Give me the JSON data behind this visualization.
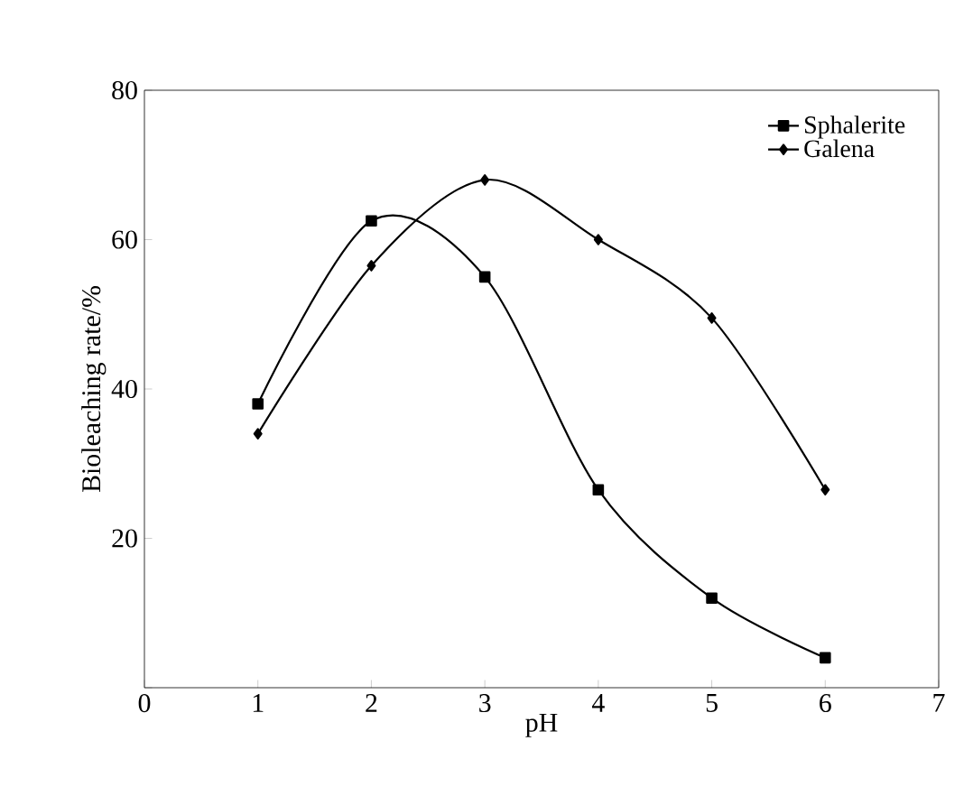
{
  "chart_data": {
    "type": "line",
    "xlabel": "pH",
    "ylabel": "Bioleaching rate/%",
    "x": [
      1,
      2,
      3,
      4,
      5,
      6
    ],
    "series": [
      {
        "name": "Sphalerite",
        "color": "#000000",
        "marker": "square",
        "values": [
          38,
          62.5,
          55,
          26.5,
          12,
          4
        ]
      },
      {
        "name": "Galena",
        "color": "#000000",
        "marker": "diamond",
        "values": [
          34,
          56.5,
          68,
          60,
          49.5,
          26.5
        ]
      }
    ],
    "xlim": [
      0,
      7
    ],
    "xticks": [
      0,
      1,
      2,
      3,
      4,
      5,
      6,
      7
    ],
    "ylim": [
      0,
      80
    ],
    "yticks": [
      {
        "value": 0,
        "label": null
      },
      20,
      40,
      60,
      80
    ],
    "legend": "top right",
    "grid": false,
    "line_style": "solid"
  }
}
